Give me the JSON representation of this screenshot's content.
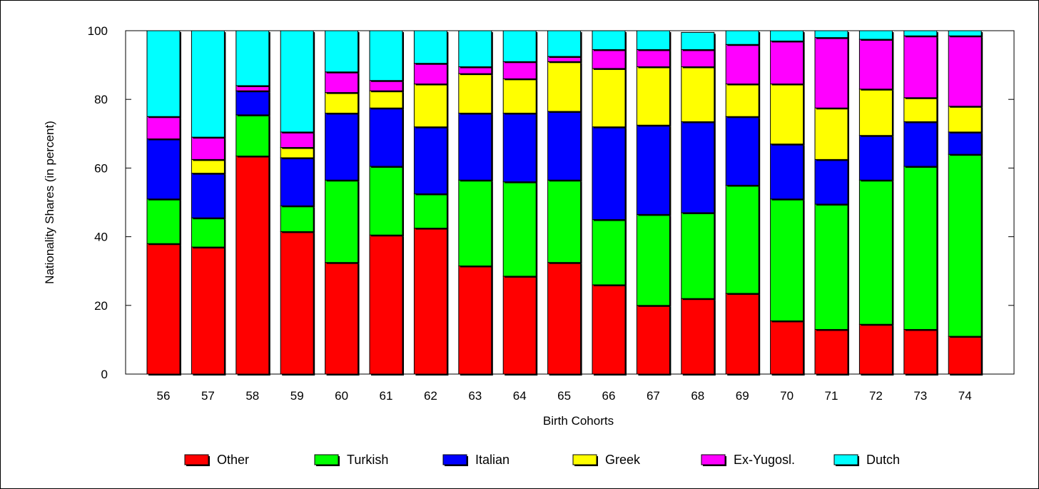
{
  "chart_data": {
    "type": "bar",
    "stacked": true,
    "title": "",
    "xlabel": "Birth Cohorts",
    "ylabel": "Nationality Shares (in percent)",
    "ylim": [
      0,
      100
    ],
    "yticks": [
      0,
      20,
      40,
      60,
      80,
      100
    ],
    "grid": false,
    "legend_position": "bottom",
    "categories": [
      "56",
      "57",
      "58",
      "59",
      "60",
      "61",
      "62",
      "63",
      "64",
      "65",
      "66",
      "67",
      "68",
      "69",
      "70",
      "71",
      "72",
      "73",
      "74"
    ],
    "series": [
      {
        "name": "Other",
        "color": "#ff0000",
        "values": [
          38,
          37,
          63.5,
          41.5,
          32.5,
          40.5,
          42.5,
          31.5,
          28.5,
          32.5,
          26,
          20,
          22,
          23.5,
          15.5,
          13,
          14.5,
          13,
          11
        ]
      },
      {
        "name": "Turkish",
        "color": "#00ff00",
        "values": [
          13,
          8.5,
          12,
          7.5,
          24,
          20,
          10,
          25,
          27.5,
          24,
          19,
          26.5,
          25,
          31.5,
          35.5,
          36.5,
          42,
          47.5,
          53
        ]
      },
      {
        "name": "Italian",
        "color": "#0000ff",
        "values": [
          17.5,
          13,
          7,
          14,
          19.5,
          17,
          19.5,
          19.5,
          20,
          20,
          27,
          26,
          26.5,
          20,
          16,
          13,
          13,
          13,
          6.5
        ]
      },
      {
        "name": "Greek",
        "color": "#ffff00",
        "values": [
          0,
          4,
          0,
          3,
          6,
          5,
          12.5,
          11.5,
          10,
          14.5,
          17,
          17,
          16,
          9.5,
          17.5,
          15,
          13.5,
          7,
          7.5
        ]
      },
      {
        "name": "Ex-Yugosl.",
        "color": "#ff00ff",
        "values": [
          6.5,
          6.5,
          1.5,
          4.5,
          6,
          3,
          6,
          2,
          5,
          1.5,
          5.5,
          5,
          5,
          11.5,
          12.5,
          20.5,
          14.5,
          18,
          20.5
        ]
      },
      {
        "name": "Dutch",
        "color": "#00ffff",
        "values": [
          25,
          31,
          16,
          29.5,
          12,
          14.5,
          9.5,
          10.5,
          9,
          7.5,
          5.5,
          5.5,
          5,
          4,
          3,
          2,
          2.5,
          1.5,
          1.5
        ]
      }
    ]
  }
}
